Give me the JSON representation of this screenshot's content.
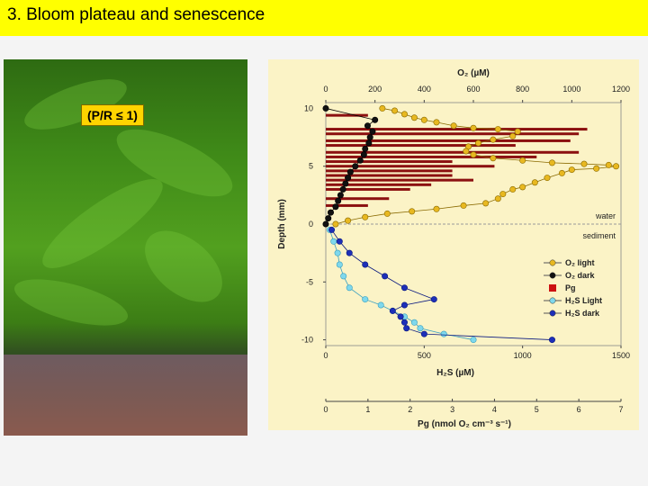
{
  "slide": {
    "title": "3. Bloom plateau and senescence",
    "badge": "(P/R ≤ 1)"
  },
  "colors": {
    "title_bg": "#ffff00",
    "chart_bg": "#fbf3c6",
    "o2_light": "#e8b820",
    "o2_dark": "#111111",
    "pg": "#8b1010",
    "h2s_light": "#7fd8ec",
    "h2s_dark": "#1d2fb8"
  },
  "chart_data": {
    "type": "scatter",
    "title": "",
    "top_axis": {
      "label": "O₂ (µM)",
      "ticks": [
        0,
        200,
        400,
        600,
        800,
        1000,
        1200
      ],
      "range": [
        0,
        1200
      ]
    },
    "bottom_axis": {
      "label": "H₂S (µM)",
      "ticks": [
        0,
        500,
        1000,
        1500
      ],
      "range": [
        0,
        1500
      ]
    },
    "pg_axis": {
      "label": "Pg (nmol O₂ cm⁻³ s⁻¹)",
      "ticks": [
        0,
        1,
        2,
        3,
        4,
        5,
        6,
        7
      ],
      "range": [
        0,
        7
      ]
    },
    "y_axis": {
      "label": "Depth (mm)",
      "ticks": [
        10,
        5,
        0,
        -5,
        -10
      ],
      "range": [
        -10.5,
        10.5
      ]
    },
    "annotations": {
      "water": "water",
      "sediment": "sediment"
    },
    "legend": [
      {
        "name": "O₂ light",
        "color": "#e8b820"
      },
      {
        "name": "O₂ dark",
        "color": "#111111"
      },
      {
        "name": "Pg",
        "color": "#cc1111"
      },
      {
        "name": "H₂S Light",
        "color": "#7fd8ec"
      },
      {
        "name": "H₂S dark",
        "color": "#1d2fb8"
      }
    ],
    "series": [
      {
        "name": "O₂ light",
        "axis": "o2",
        "points": [
          [
            230,
            10
          ],
          [
            280,
            9.8
          ],
          [
            320,
            9.5
          ],
          [
            360,
            9.2
          ],
          [
            400,
            9.0
          ],
          [
            450,
            8.8
          ],
          [
            520,
            8.5
          ],
          [
            600,
            8.3
          ],
          [
            700,
            8.2
          ],
          [
            780,
            8.0
          ],
          [
            760,
            7.6
          ],
          [
            680,
            7.3
          ],
          [
            620,
            7.0
          ],
          [
            580,
            6.7
          ],
          [
            570,
            6.3
          ],
          [
            600,
            6.0
          ],
          [
            680,
            5.7
          ],
          [
            800,
            5.5
          ],
          [
            920,
            5.3
          ],
          [
            1050,
            5.2
          ],
          [
            1150,
            5.1
          ],
          [
            1180,
            5.0
          ],
          [
            1100,
            4.8
          ],
          [
            1000,
            4.7
          ],
          [
            960,
            4.4
          ],
          [
            900,
            4.0
          ],
          [
            850,
            3.6
          ],
          [
            800,
            3.2
          ],
          [
            760,
            3.0
          ],
          [
            720,
            2.6
          ],
          [
            700,
            2.2
          ],
          [
            650,
            1.8
          ],
          [
            560,
            1.6
          ],
          [
            450,
            1.3
          ],
          [
            350,
            1.1
          ],
          [
            250,
            0.9
          ],
          [
            160,
            0.6
          ],
          [
            90,
            0.3
          ],
          [
            40,
            0
          ]
        ]
      },
      {
        "name": "O₂ dark",
        "axis": "o2",
        "points": [
          [
            0,
            10
          ],
          [
            200,
            9.0
          ],
          [
            170,
            8.5
          ],
          [
            190,
            8.0
          ],
          [
            180,
            7.5
          ],
          [
            175,
            7.0
          ],
          [
            160,
            6.5
          ],
          [
            155,
            6.0
          ],
          [
            140,
            5.5
          ],
          [
            120,
            5.0
          ],
          [
            100,
            4.5
          ],
          [
            90,
            4.0
          ],
          [
            80,
            3.5
          ],
          [
            70,
            3.0
          ],
          [
            60,
            2.5
          ],
          [
            50,
            2.0
          ],
          [
            40,
            1.5
          ],
          [
            20,
            1.0
          ],
          [
            10,
            0.5
          ],
          [
            0,
            0
          ]
        ]
      },
      {
        "name": "H₂S Light",
        "axis": "h2s",
        "points": [
          [
            20,
            -0.5
          ],
          [
            40,
            -1.5
          ],
          [
            60,
            -2.5
          ],
          [
            70,
            -3.5
          ],
          [
            90,
            -4.5
          ],
          [
            120,
            -5.5
          ],
          [
            200,
            -6.5
          ],
          [
            280,
            -7.0
          ],
          [
            340,
            -7.5
          ],
          [
            400,
            -8.0
          ],
          [
            450,
            -8.5
          ],
          [
            480,
            -9.0
          ],
          [
            600,
            -9.5
          ],
          [
            750,
            -10
          ]
        ]
      },
      {
        "name": "H₂S dark",
        "axis": "h2s",
        "points": [
          [
            30,
            -0.5
          ],
          [
            70,
            -1.5
          ],
          [
            120,
            -2.5
          ],
          [
            200,
            -3.5
          ],
          [
            300,
            -4.5
          ],
          [
            400,
            -5.5
          ],
          [
            550,
            -6.5
          ],
          [
            400,
            -7.0
          ],
          [
            340,
            -7.5
          ],
          [
            380,
            -8.0
          ],
          [
            400,
            -8.5
          ],
          [
            410,
            -9.0
          ],
          [
            500,
            -9.5
          ],
          [
            1150,
            -10
          ]
        ]
      },
      {
        "name": "Pg",
        "axis": "pg",
        "bars": [
          [
            9.4,
            1.0
          ],
          [
            8.2,
            6.2
          ],
          [
            7.8,
            6.0
          ],
          [
            7.2,
            5.8
          ],
          [
            6.8,
            4.5
          ],
          [
            6.2,
            6.0
          ],
          [
            5.8,
            5.0
          ],
          [
            5.4,
            3.0
          ],
          [
            5.0,
            4.0
          ],
          [
            4.6,
            3.0
          ],
          [
            4.2,
            3.0
          ],
          [
            3.8,
            3.5
          ],
          [
            3.4,
            2.5
          ],
          [
            3.0,
            2.0
          ],
          [
            2.2,
            1.5
          ],
          [
            1.6,
            1.0
          ]
        ]
      }
    ]
  }
}
